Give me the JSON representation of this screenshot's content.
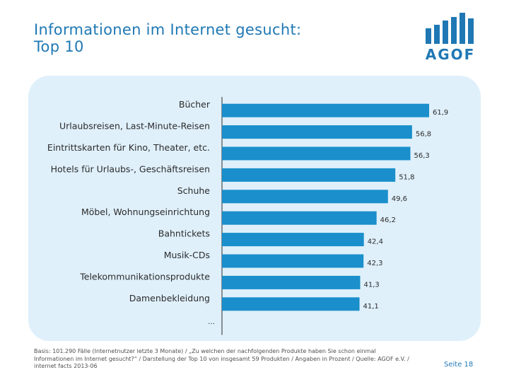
{
  "title_line1": "Informationen im Internet gesucht:",
  "title_line2": "Top 10",
  "logo": {
    "icon": "agof-bars-logo",
    "text": "AGOF",
    "color": "#1f78b4"
  },
  "chart_data": {
    "type": "bar",
    "orientation": "horizontal",
    "categories": [
      "Bücher",
      "Urlaubsreisen, Last-Minute-Reisen",
      "Eintrittskarten für Kino, Theater, etc.",
      "Hotels für Urlaubs-, Geschäftsreisen",
      "Schuhe",
      "Möbel, Wohnungseinrichtung",
      "Bahntickets",
      "Musik-CDs",
      "Telekommunikationsprodukte",
      "Damenbekleidung"
    ],
    "values": [
      61.9,
      56.8,
      56.3,
      51.8,
      49.6,
      46.2,
      42.4,
      42.3,
      41.3,
      41.1
    ],
    "value_labels": [
      "61,9",
      "56,8",
      "56,3",
      "51,8",
      "49,6",
      "46,2",
      "42,4",
      "42,3",
      "41,3",
      "41,1"
    ],
    "trailing_label": "…",
    "bar_color": "#1a8fcb",
    "xlim": [
      0,
      62
    ]
  },
  "footnote": "Basis: 101.290 Fälle (Internetnutzer letzte 3 Monate) / „Zu welchen der nachfolgenden Produkte haben Sie schon einmal Informationen im Internet gesucht?“ / Darstellung der Top 10 von insgesamt 59 Produkten / Angaben in Prozent / Quelle: AGOF e.V. / internet facts 2013-06",
  "page_number": "Seite 18"
}
